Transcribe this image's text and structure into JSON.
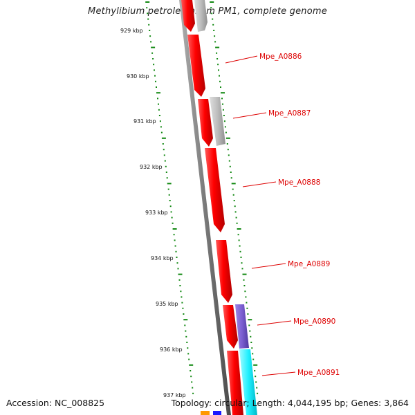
{
  "title": "Methylibium petroleiphilum PM1, complete genome",
  "footer": {
    "accession": "Accession: NC_008825",
    "summary": "Topology: circular; Length: 4,044,195 bp; Genes: 3,864"
  },
  "ticks": [
    "929 kbp",
    "930 kbp",
    "931 kbp",
    "932 kbp",
    "933 kbp",
    "934 kbp",
    "935 kbp",
    "936 kbp",
    "937 kbp"
  ],
  "genes": [
    {
      "label": "Mpe_A0886",
      "color": "#ff0000"
    },
    {
      "label": "Mpe_A0887",
      "color": "#ff0000"
    },
    {
      "label": "Mpe_A0888",
      "color": "#ff0000"
    },
    {
      "label": "Mpe_A0889",
      "color": "#ff0000"
    },
    {
      "label": "Mpe_A0890",
      "color": "#ff0000"
    },
    {
      "label": "Mpe_A0891",
      "color": "#ff0000"
    }
  ],
  "colors": {
    "forward_gene": "#ff0000",
    "reverse_gray": "#b9b9b9",
    "reverse_purple": "#7b5fcf",
    "reverse_cyan": "#22f0ff",
    "backbone": "#777777",
    "tick_green": "#118811",
    "label_red": "#dd0000",
    "orange": "#ff9900",
    "blue": "#1a1aff"
  }
}
